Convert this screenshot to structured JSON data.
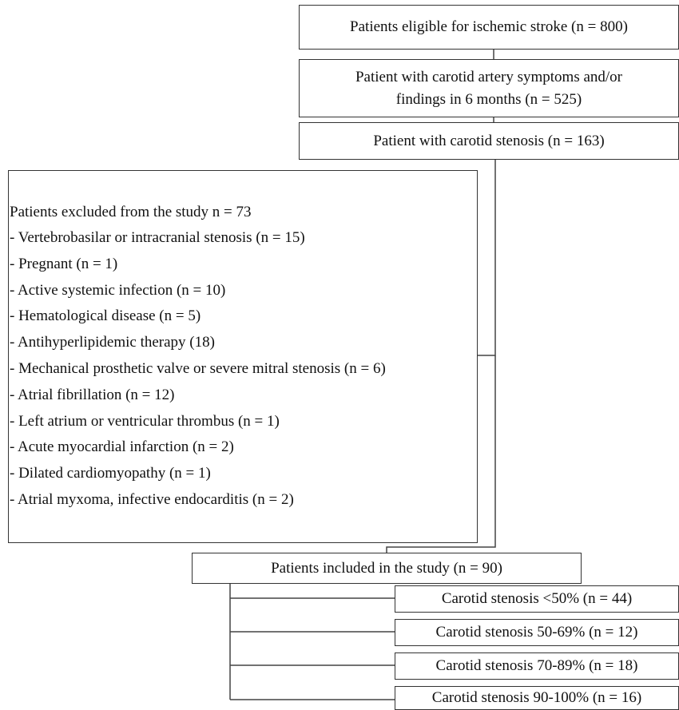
{
  "flow": {
    "eligible": "Patients eligible for ischemic stroke (n = 800)",
    "carotid_symptoms_line1": "Patient with carotid artery symptoms and/or",
    "carotid_symptoms_line2": "findings in 6 months (n = 525)",
    "carotid_stenosis": "Patient with carotid stenosis (n = 163)",
    "included": "Patients included in the study (n = 90)"
  },
  "excluded": {
    "title": "Patients excluded from the study n = 73",
    "items": [
      "- Vertebrobasilar or intracranial stenosis (n = 15)",
      "- Pregnant (n = 1)",
      "- Active systemic infection (n = 10)",
      "- Hematological disease (n = 5)",
      "- Antihyperlipidemic therapy (18)",
      "- Mechanical prosthetic valve or severe mitral stenosis (n = 6)",
      "- Atrial fibrillation (n = 12)",
      "- Left atrium or ventricular thrombus (n = 1)",
      "- Acute myocardial infarction (n = 2)",
      "- Dilated cardiomyopathy (n = 1)",
      "- Atrial myxoma, infective endocarditis (n = 2)"
    ]
  },
  "groups": [
    "Carotid stenosis <50% (n = 44)",
    "Carotid stenosis 50-69% (n = 12)",
    "Carotid stenosis 70-89% (n = 18)",
    "Carotid stenosis 90-100% (n = 16)"
  ]
}
